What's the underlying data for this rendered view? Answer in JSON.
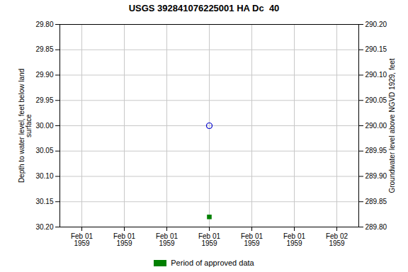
{
  "chart_data": {
    "type": "scatter",
    "title": "USGS 392841076225001 HA Dc  40",
    "ylabel": "Depth to water level, feet below land\nsurface",
    "y2label": "Groundwater level above NGVD 1929, feet",
    "categories": [
      "Feb 01\n1959",
      "Feb 01\n1959",
      "Feb 01\n1959",
      "Feb 01\n1959",
      "Feb 01\n1959",
      "Feb 01\n1959",
      "Feb 02\n1959"
    ],
    "series": [
      {
        "color": "#0000cc",
        "marker": "open_circle",
        "values": [
          null,
          null,
          null,
          30.0,
          null,
          null,
          null
        ]
      },
      {
        "name": "Period of approved data",
        "color": "#008000",
        "marker": "square",
        "values": [
          null,
          null,
          null,
          30.18,
          null,
          null,
          null
        ]
      }
    ],
    "ylim": [
      30.2,
      29.8
    ],
    "yticks": [
      {
        "value": 29.8,
        "label": "29.80"
      },
      {
        "value": 29.85,
        "label": "29.85"
      },
      {
        "value": 29.9,
        "label": "29.90"
      },
      {
        "value": 29.95,
        "label": "29.95"
      },
      {
        "value": 30.0,
        "label": "30.00"
      },
      {
        "value": 30.05,
        "label": "30.05"
      },
      {
        "value": 30.1,
        "label": "30.10"
      },
      {
        "value": 30.15,
        "label": "30.15"
      },
      {
        "value": 30.2,
        "label": "30.20"
      }
    ],
    "y2lim": [
      289.8,
      290.2
    ],
    "y2ticks": [
      {
        "value": 289.8,
        "label": "289.80"
      },
      {
        "value": 289.85,
        "label": "289.85"
      },
      {
        "value": 289.9,
        "label": "289.90"
      },
      {
        "value": 289.95,
        "label": "289.95"
      },
      {
        "value": 290.0,
        "label": "290.00"
      },
      {
        "value": 290.05,
        "label": "290.05"
      },
      {
        "value": 290.1,
        "label": "290.10"
      },
      {
        "value": 290.15,
        "label": "290.15"
      },
      {
        "value": 290.2,
        "label": "290.20"
      }
    ],
    "grid": true,
    "legend": "bottom"
  }
}
